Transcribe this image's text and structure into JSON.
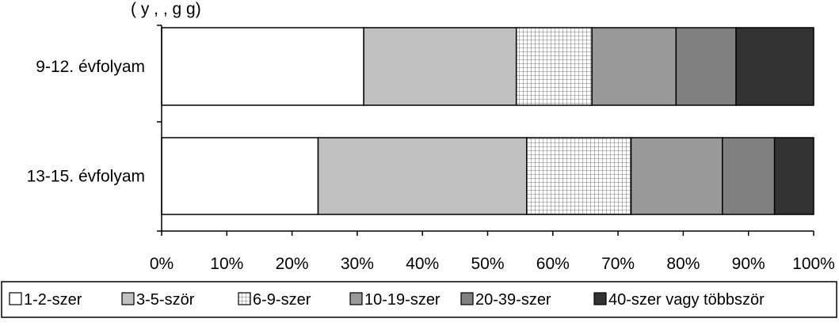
{
  "chart_data": {
    "type": "bar",
    "orientation": "horizontal",
    "stacked": "percent",
    "title": "",
    "title_partial_visible": "(... y ... , ... , ... g ... g)",
    "categories": [
      "9-12. évfolyam",
      "13-15. évfolyam"
    ],
    "series": [
      {
        "name": "1-2-szer",
        "values": [
          31,
          24
        ],
        "color": "#ffffff",
        "pattern": "none"
      },
      {
        "name": "3-5-ször",
        "values": [
          23.4,
          32
        ],
        "color": "#c0c0c0",
        "pattern": "none"
      },
      {
        "name": "6-9-szer",
        "values": [
          11.6,
          16
        ],
        "color": "#ffffff",
        "pattern": "grid"
      },
      {
        "name": "10-19-szer",
        "values": [
          12.9,
          14
        ],
        "color": "#999999",
        "pattern": "none"
      },
      {
        "name": "20-39-szer",
        "values": [
          9.2,
          8
        ],
        "color": "#808080",
        "pattern": "none"
      },
      {
        "name": "40-szer vagy többször",
        "values": [
          11.9,
          6
        ],
        "color": "#333333",
        "pattern": "none"
      }
    ],
    "xlim": [
      0,
      100
    ],
    "xticks": [
      "0%",
      "10%",
      "20%",
      "30%",
      "40%",
      "50%",
      "60%",
      "70%",
      "80%",
      "90%",
      "100%"
    ],
    "legend_position": "bottom",
    "grid": false
  }
}
